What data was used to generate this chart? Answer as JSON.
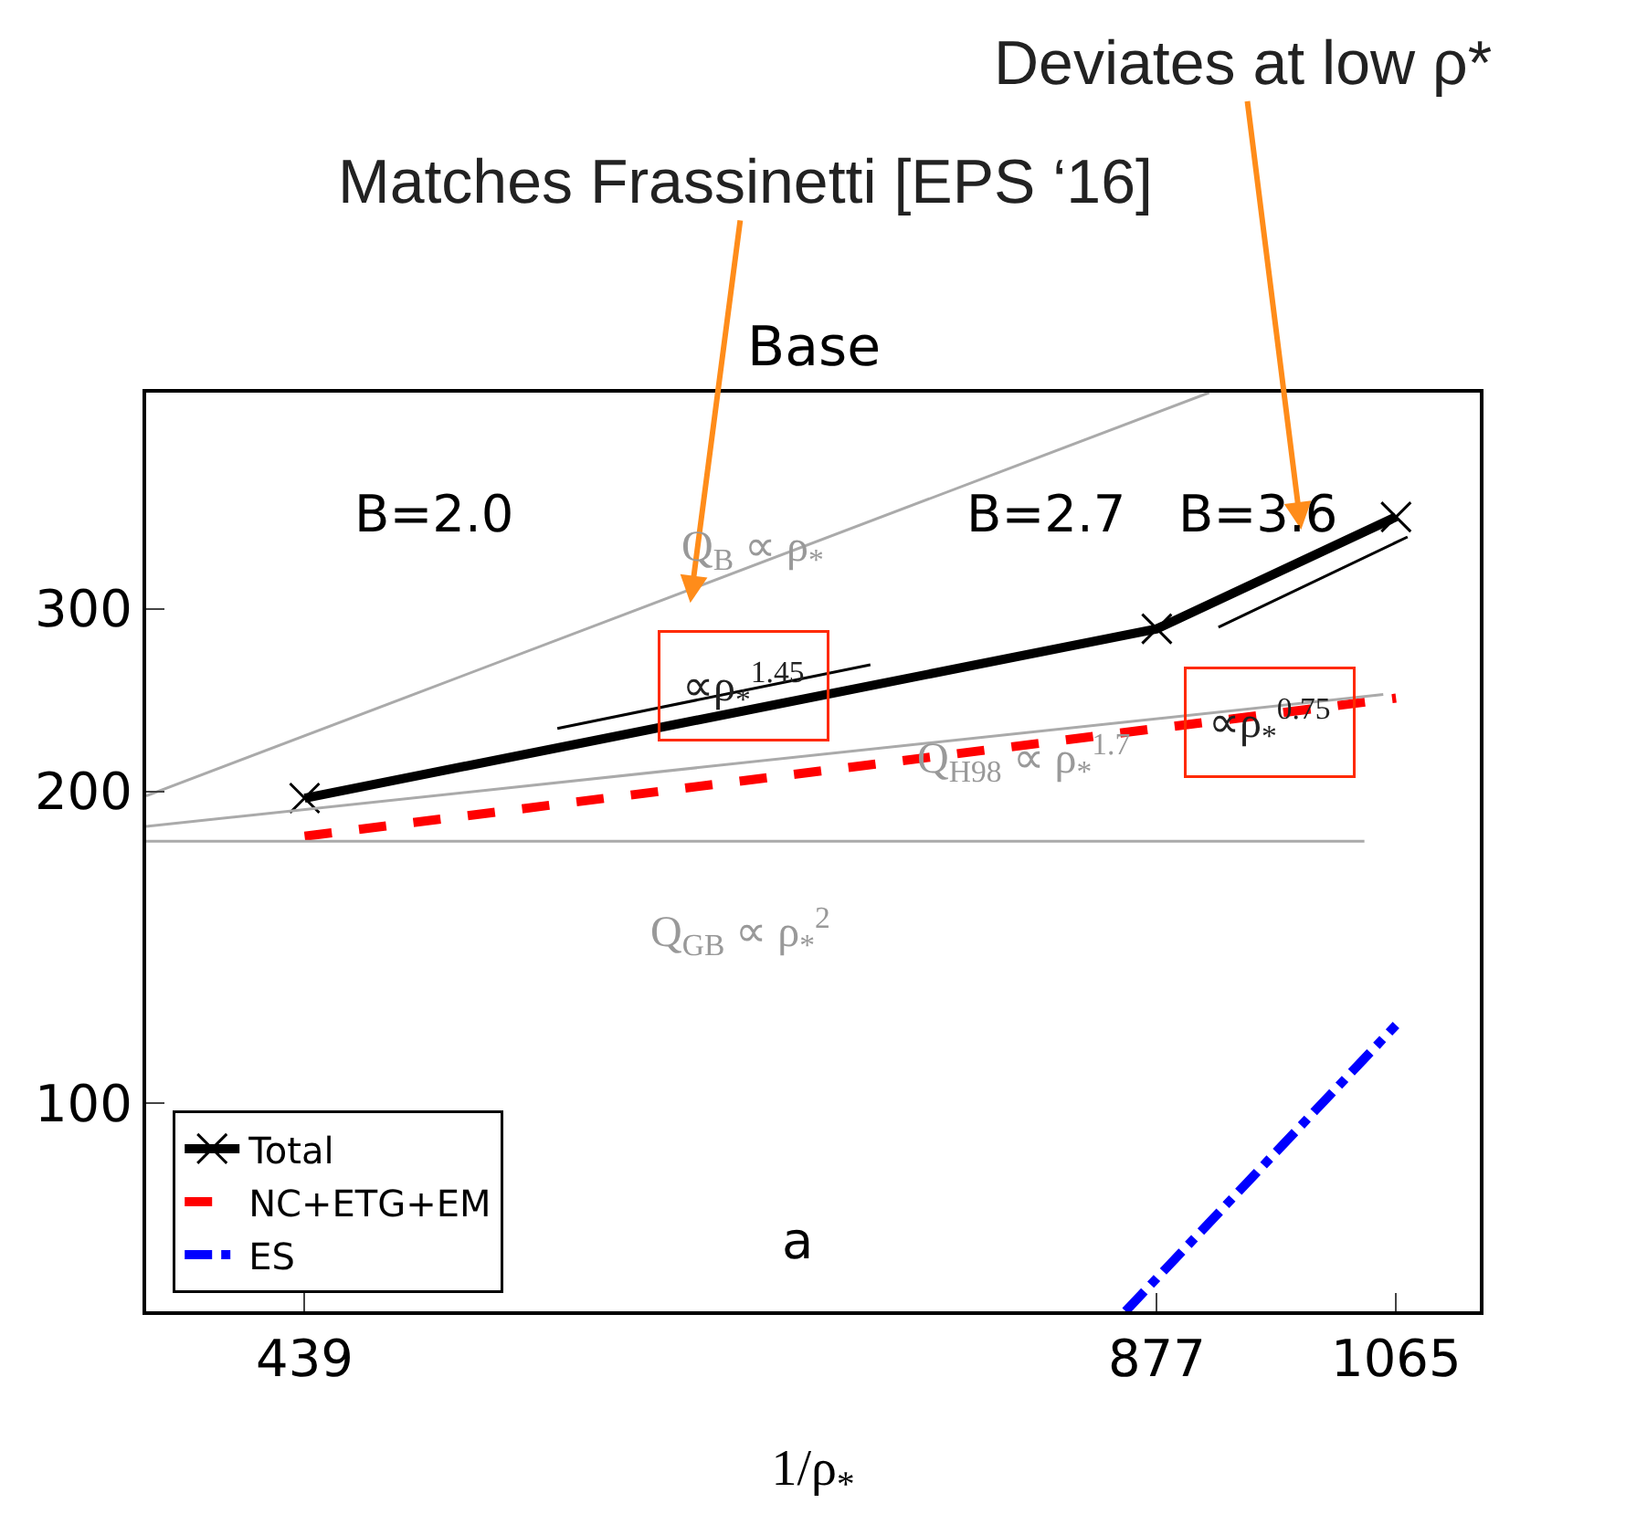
{
  "chart_data": {
    "type": "line",
    "title": "Base",
    "xlabel": "1/ρ$_{*}$",
    "log": "xy",
    "grid": false,
    "legend": "bottom left",
    "xlim": [
      386,
      1140
    ],
    "ylim": [
      63,
      485
    ],
    "xticks": [
      439,
      877,
      1065
    ],
    "yticks": [
      100,
      200,
      300
    ],
    "series": [
      {
        "name": "Total",
        "color": "#000000",
        "x": [
          439,
          877,
          1065
        ],
        "values": [
          197,
          287,
          368
        ],
        "marker": "cross",
        "line_style": "solid"
      },
      {
        "name": "NC+ETG+EM",
        "color": "#ff0000",
        "x": [
          439,
          1065
        ],
        "values": [
          181,
          246
        ],
        "marker": "none",
        "line_style": "dashed"
      },
      {
        "name": "ES",
        "color": "#0000ff",
        "x": [
          855,
          1065
        ],
        "values": [
          63,
          119
        ],
        "marker": "none",
        "line_style": "dashdot"
      },
      {
        "color": "#aaaaaa",
        "x": [
          386,
          915
        ],
        "values": [
          198,
          485
        ],
        "marker": "none",
        "line_style": "solid"
      },
      {
        "color": "#aaaaaa",
        "x": [
          386,
          1054
        ],
        "values": [
          185,
          248
        ],
        "marker": "none",
        "line_style": "solid"
      },
      {
        "color": "#aaaaaa",
        "x": [
          386,
          1038
        ],
        "values": [
          179,
          179
        ],
        "marker": "none",
        "line_style": "solid"
      },
      {
        "color": "#000000",
        "x": [
          539,
          695
        ],
        "values": [
          230,
          265
        ],
        "marker": "none",
        "line_style": "solid"
      },
      {
        "color": "#000000",
        "x": [
          922,
          1075
        ],
        "values": [
          288,
          352
        ],
        "marker": "none",
        "line_style": "solid"
      }
    ],
    "annotations": [
      "Matches Frassinetti [EPS ‘16]",
      "Deviates at low ρ*",
      "B=2.0",
      "B=2.7",
      "B=3.6",
      "Q$_{B}$ ∝ ρ$_{*}$",
      {
        "text": "∝ρ$_{*}$$^{1.45}$",
        "x": 627,
        "y": 253
      },
      {
        "text": "Q$_{H98}$ ∝ ρ$_{*}$$^{1.7}$",
        "x": 787,
        "y": 215
      },
      "∝ρ$_{*}$$^{0.75}$",
      "Q$_{GB}$ ∝ ρ$_{*}$$^{2}$",
      "a"
    ]
  }
}
